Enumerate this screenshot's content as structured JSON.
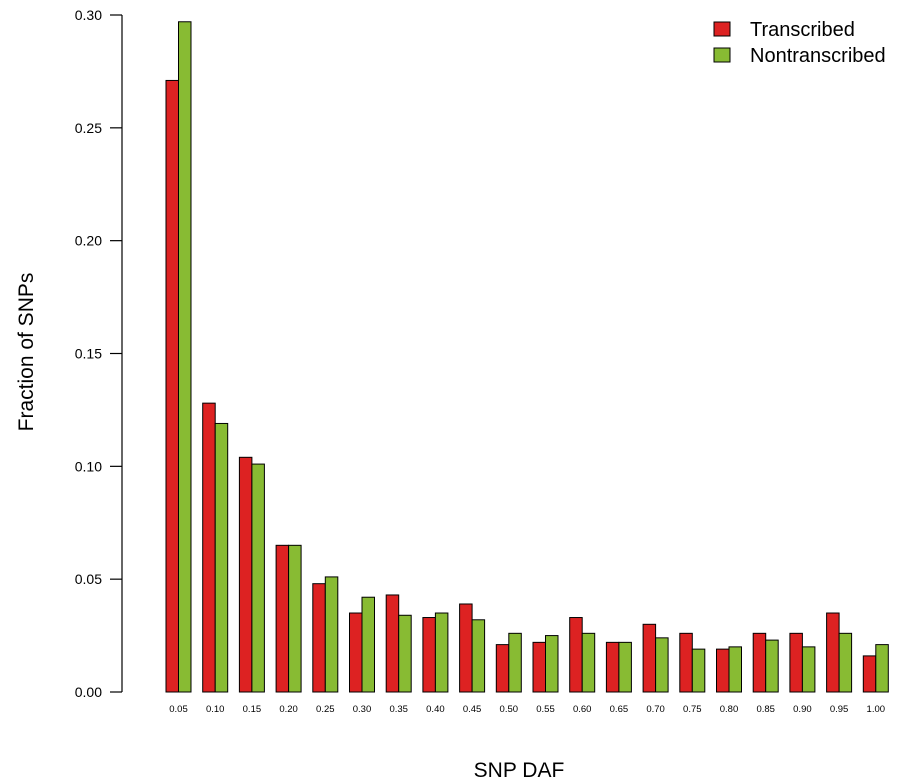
{
  "chart_data": {
    "type": "bar",
    "title": "",
    "xlabel": "SNP DAF",
    "ylabel": "Fraction of SNPs",
    "ylim": [
      0,
      0.3
    ],
    "yticks": [
      "0.00",
      "0.05",
      "0.10",
      "0.15",
      "0.20",
      "0.25",
      "0.30"
    ],
    "categories": [
      "0.05",
      "0.10",
      "0.15",
      "0.20",
      "0.25",
      "0.30",
      "0.35",
      "0.40",
      "0.45",
      "0.50",
      "0.55",
      "0.60",
      "0.65",
      "0.70",
      "0.75",
      "0.80",
      "0.85",
      "0.90",
      "0.95",
      "1.00"
    ],
    "series": [
      {
        "name": "Transcribed",
        "color": "#dd2222",
        "values": [
          0.271,
          0.128,
          0.104,
          0.065,
          0.048,
          0.035,
          0.043,
          0.033,
          0.039,
          0.021,
          0.022,
          0.033,
          0.022,
          0.03,
          0.026,
          0.019,
          0.026,
          0.026,
          0.035,
          0.016
        ]
      },
      {
        "name": "Nontranscribed",
        "color": "#88bb33",
        "values": [
          0.297,
          0.119,
          0.101,
          0.065,
          0.051,
          0.042,
          0.034,
          0.035,
          0.032,
          0.026,
          0.025,
          0.026,
          0.022,
          0.024,
          0.019,
          0.02,
          0.023,
          0.02,
          0.026,
          0.021
        ]
      }
    ],
    "legend_position": "top-right",
    "grid": false
  }
}
